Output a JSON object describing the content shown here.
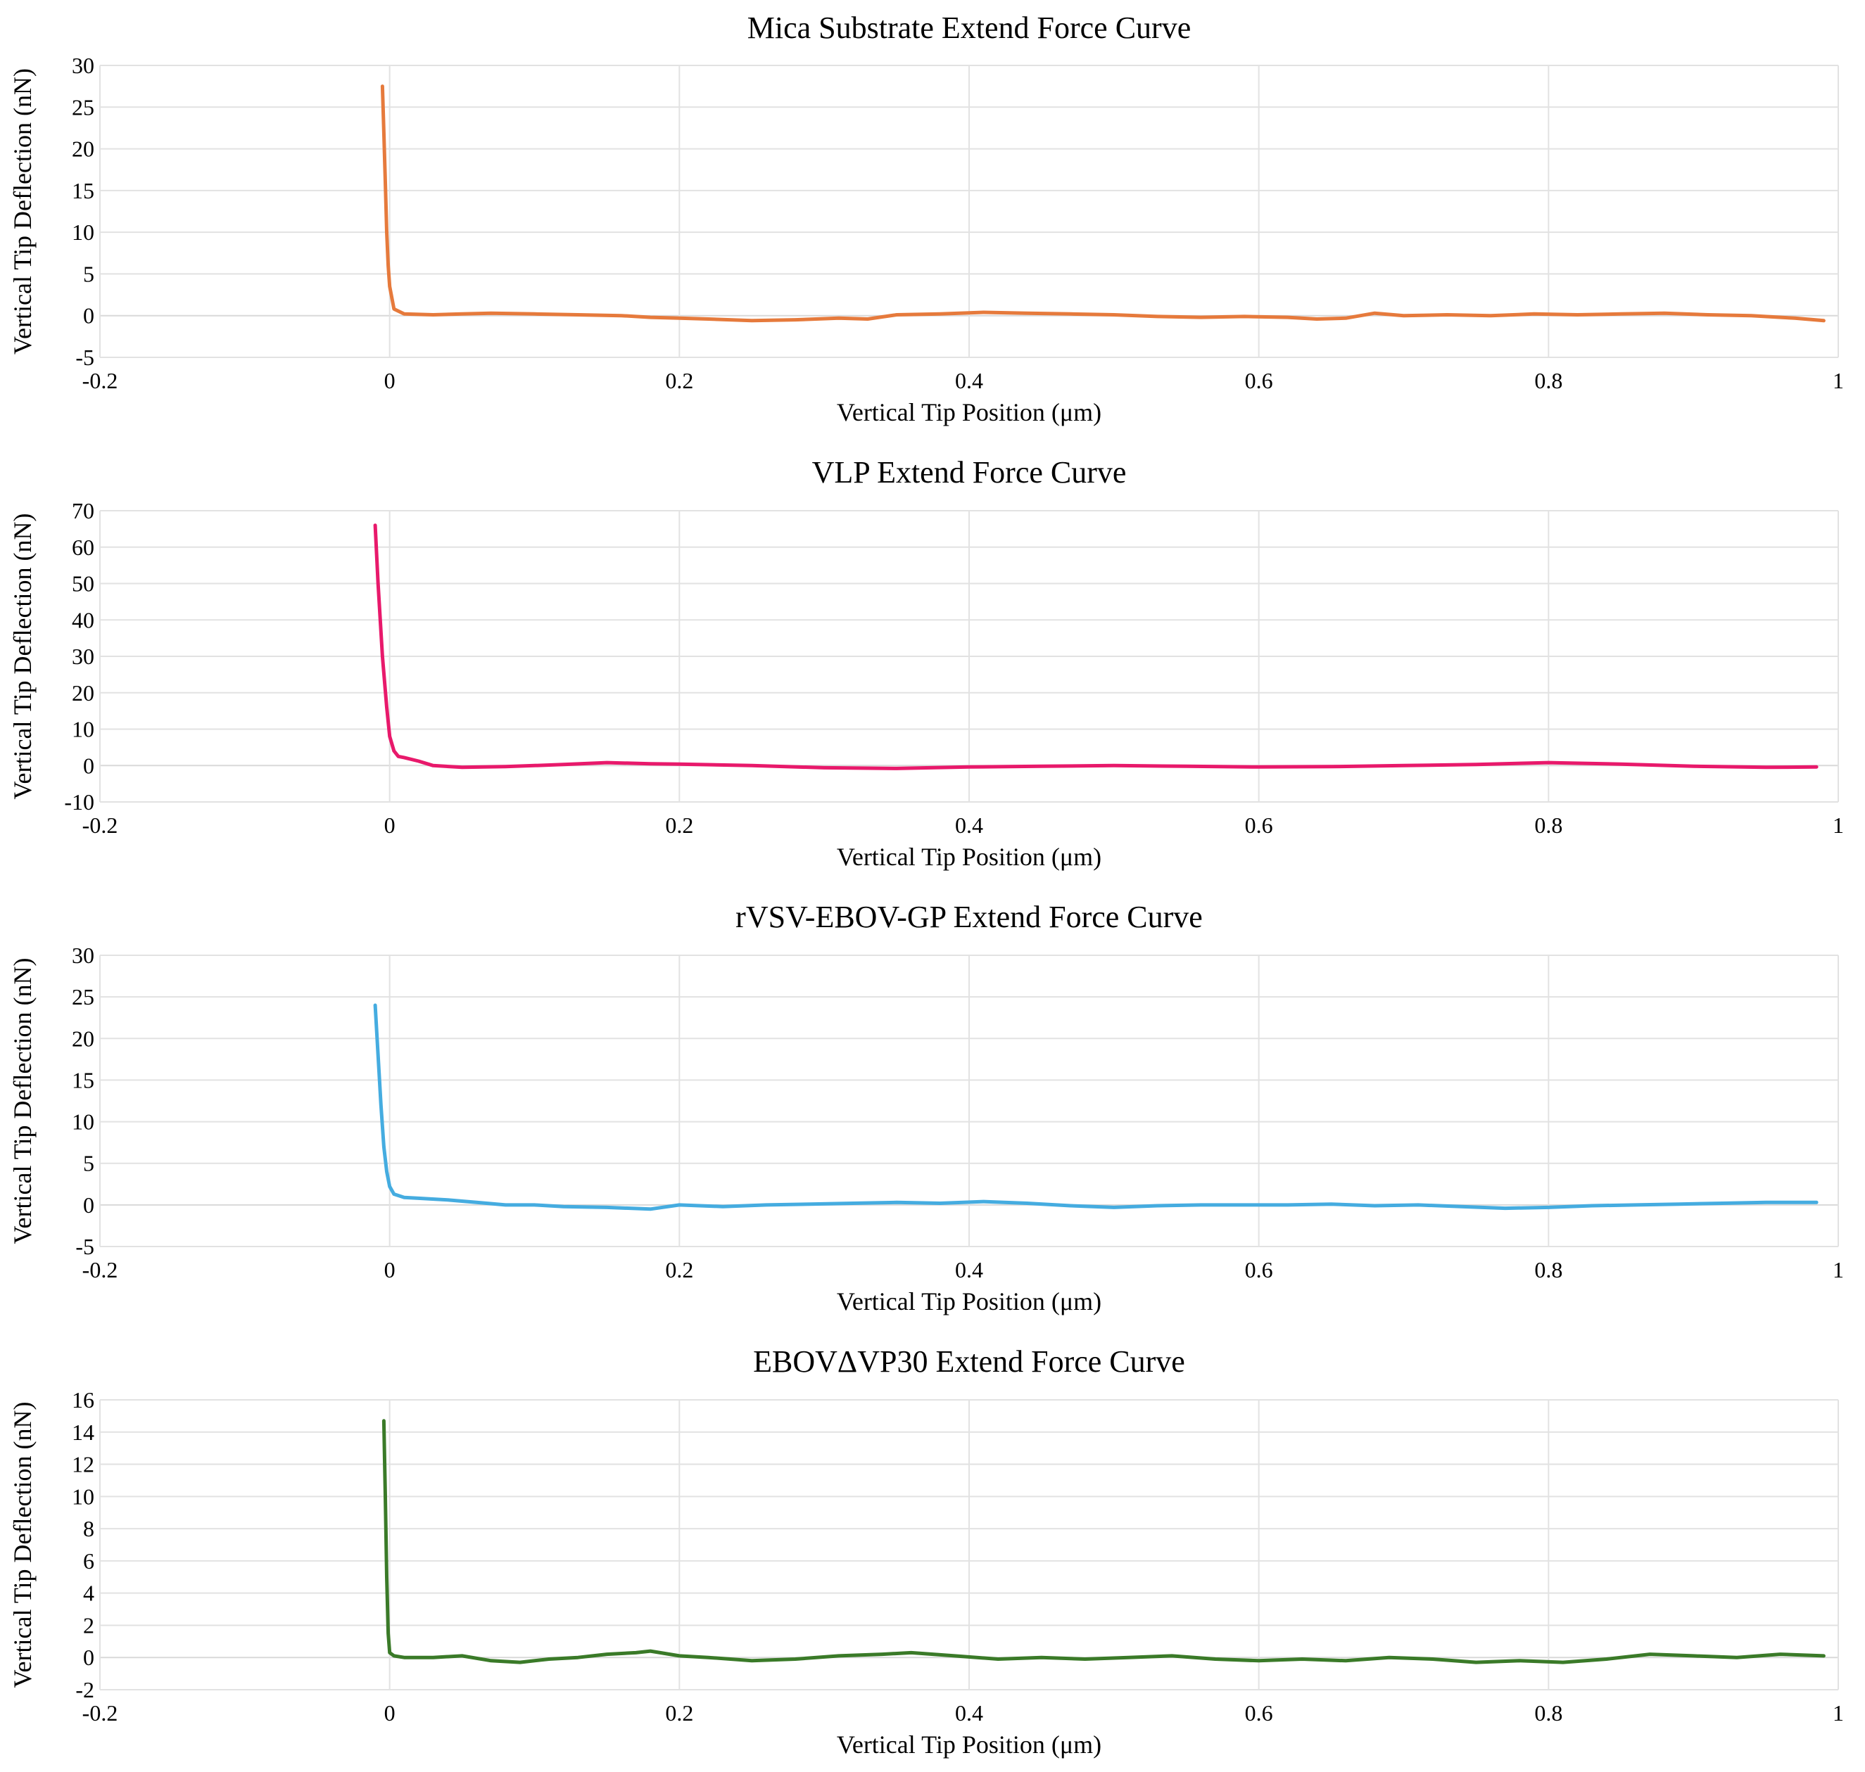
{
  "chart_data": [
    {
      "type": "line",
      "title": "Mica Substrate Extend Force Curve",
      "xlabel": "Vertical Tip Position (μm)",
      "ylabel": "Vertical Tip Deflection (nN)",
      "xlim": [
        -0.2,
        1
      ],
      "ylim": [
        -5,
        30
      ],
      "xticks": [
        -0.2,
        0,
        0.2,
        0.4,
        0.6,
        0.8,
        1
      ],
      "xtick_labels": [
        "-0.2",
        "0",
        "0.2",
        "0.4",
        "0.6",
        "0.8",
        "1"
      ],
      "yticks": [
        -5,
        0,
        5,
        10,
        15,
        20,
        25,
        30
      ],
      "ytick_labels": [
        "-5",
        "0",
        "5",
        "10",
        "15",
        "20",
        "25",
        "30"
      ],
      "grid": true,
      "color": "#e67a3c",
      "series": [
        {
          "x": [
            -0.005,
            -0.004,
            -0.003,
            -0.002,
            -0.001,
            0.0,
            0.003,
            0.01,
            0.03,
            0.05,
            0.07,
            0.1,
            0.13,
            0.16,
            0.18,
            0.2,
            0.22,
            0.25,
            0.28,
            0.31,
            0.33,
            0.35,
            0.38,
            0.41,
            0.44,
            0.47,
            0.5,
            0.53,
            0.56,
            0.59,
            0.62,
            0.64,
            0.66,
            0.68,
            0.7,
            0.73,
            0.76,
            0.79,
            0.82,
            0.85,
            0.88,
            0.91,
            0.94,
            0.97,
            0.99
          ],
          "y": [
            27.5,
            22,
            16,
            10,
            6,
            3.5,
            0.8,
            0.2,
            0.1,
            0.2,
            0.3,
            0.2,
            0.1,
            0.0,
            -0.2,
            -0.3,
            -0.4,
            -0.6,
            -0.5,
            -0.3,
            -0.4,
            0.1,
            0.2,
            0.4,
            0.3,
            0.2,
            0.1,
            -0.1,
            -0.2,
            -0.1,
            -0.2,
            -0.4,
            -0.3,
            0.3,
            0.0,
            0.1,
            0.0,
            0.2,
            0.1,
            0.2,
            0.3,
            0.1,
            0.0,
            -0.3,
            -0.6
          ]
        }
      ]
    },
    {
      "type": "line",
      "title": "VLP Extend Force Curve",
      "xlabel": "Vertical Tip Position (μm)",
      "ylabel": "Vertical Tip Deflection (nN)",
      "xlim": [
        -0.2,
        1
      ],
      "ylim": [
        -10,
        70
      ],
      "xticks": [
        -0.2,
        0,
        0.2,
        0.4,
        0.6,
        0.8,
        1
      ],
      "xtick_labels": [
        "-0.2",
        "0",
        "0.2",
        "0.4",
        "0.6",
        "0.8",
        "1"
      ],
      "yticks": [
        -10,
        0,
        10,
        20,
        30,
        40,
        50,
        60,
        70
      ],
      "ytick_labels": [
        "-10",
        "0",
        "10",
        "20",
        "30",
        "40",
        "50",
        "60",
        "70"
      ],
      "grid": true,
      "color": "#e8196b",
      "series": [
        {
          "x": [
            -0.01,
            -0.008,
            -0.005,
            -0.002,
            0.0,
            0.003,
            0.006,
            0.01,
            0.02,
            0.03,
            0.05,
            0.08,
            0.1,
            0.12,
            0.15,
            0.18,
            0.2,
            0.25,
            0.3,
            0.35,
            0.4,
            0.45,
            0.5,
            0.55,
            0.6,
            0.65,
            0.7,
            0.75,
            0.8,
            0.85,
            0.9,
            0.95,
            0.985
          ],
          "y": [
            66,
            50,
            30,
            16,
            8,
            4,
            2.5,
            2.2,
            1.2,
            0.0,
            -0.5,
            -0.3,
            0.0,
            0.3,
            0.8,
            0.5,
            0.4,
            0.0,
            -0.6,
            -0.8,
            -0.4,
            -0.2,
            0.0,
            -0.2,
            -0.4,
            -0.3,
            0.0,
            0.3,
            0.8,
            0.4,
            -0.2,
            -0.5,
            -0.4
          ]
        }
      ]
    },
    {
      "type": "line",
      "title": "rVSV-EBOV-GP Extend Force Curve",
      "xlabel": "Vertical Tip Position (μm)",
      "ylabel": "Vertical Tip Deflection (nN)",
      "xlim": [
        -0.2,
        1
      ],
      "ylim": [
        -5,
        30
      ],
      "xticks": [
        -0.2,
        0,
        0.2,
        0.4,
        0.6,
        0.8,
        1
      ],
      "xtick_labels": [
        "-0.2",
        "0",
        "0.2",
        "0.4",
        "0.6",
        "0.8",
        "1"
      ],
      "yticks": [
        -5,
        0,
        5,
        10,
        15,
        20,
        25,
        30
      ],
      "ytick_labels": [
        "-5",
        "0",
        "5",
        "10",
        "15",
        "20",
        "25",
        "30"
      ],
      "grid": true,
      "color": "#45ace0",
      "series": [
        {
          "x": [
            -0.01,
            -0.008,
            -0.006,
            -0.004,
            -0.002,
            0.0,
            0.003,
            0.01,
            0.02,
            0.04,
            0.06,
            0.08,
            0.1,
            0.12,
            0.15,
            0.18,
            0.2,
            0.23,
            0.26,
            0.29,
            0.32,
            0.35,
            0.38,
            0.41,
            0.44,
            0.47,
            0.5,
            0.53,
            0.56,
            0.59,
            0.62,
            0.65,
            0.68,
            0.71,
            0.74,
            0.77,
            0.8,
            0.83,
            0.86,
            0.89,
            0.92,
            0.95,
            0.985
          ],
          "y": [
            24,
            18,
            12,
            7,
            4,
            2.2,
            1.3,
            0.9,
            0.8,
            0.6,
            0.3,
            0.0,
            0.0,
            -0.2,
            -0.3,
            -0.5,
            0.0,
            -0.2,
            0.0,
            0.1,
            0.2,
            0.3,
            0.2,
            0.4,
            0.2,
            -0.1,
            -0.3,
            -0.1,
            0.0,
            0.0,
            0.0,
            0.1,
            -0.1,
            0.0,
            -0.2,
            -0.4,
            -0.3,
            -0.1,
            0.0,
            0.1,
            0.2,
            0.3,
            0.3
          ]
        }
      ]
    },
    {
      "type": "line",
      "title": "EBOVΔVP30 Extend Force Curve",
      "xlabel": "Vertical Tip Position (μm)",
      "ylabel": "Vertical Tip Deflection (nN)",
      "xlim": [
        -0.2,
        1
      ],
      "ylim": [
        -2,
        16
      ],
      "xticks": [
        -0.2,
        0,
        0.2,
        0.4,
        0.6,
        0.8,
        1
      ],
      "xtick_labels": [
        "-0.2",
        "0",
        "0.2",
        "0.4",
        "0.6",
        "0.8",
        "1"
      ],
      "yticks": [
        -2,
        0,
        2,
        4,
        6,
        8,
        10,
        12,
        14,
        16
      ],
      "ytick_labels": [
        "-2",
        "0",
        "2",
        "4",
        "6",
        "8",
        "10",
        "12",
        "14",
        "16"
      ],
      "grid": true,
      "color": "#3a7a28",
      "series": [
        {
          "x": [
            -0.004,
            -0.003,
            -0.002,
            -0.001,
            0.0,
            0.003,
            0.01,
            0.03,
            0.05,
            0.07,
            0.09,
            0.11,
            0.13,
            0.15,
            0.17,
            0.18,
            0.2,
            0.22,
            0.25,
            0.28,
            0.31,
            0.34,
            0.36,
            0.39,
            0.42,
            0.45,
            0.48,
            0.51,
            0.54,
            0.57,
            0.6,
            0.63,
            0.66,
            0.69,
            0.72,
            0.75,
            0.78,
            0.81,
            0.84,
            0.87,
            0.9,
            0.93,
            0.96,
            0.99
          ],
          "y": [
            14.7,
            10,
            5,
            1.5,
            0.3,
            0.1,
            0.0,
            0.0,
            0.1,
            -0.2,
            -0.3,
            -0.1,
            0.0,
            0.2,
            0.3,
            0.4,
            0.1,
            0.0,
            -0.2,
            -0.1,
            0.1,
            0.2,
            0.3,
            0.1,
            -0.1,
            0.0,
            -0.1,
            0.0,
            0.1,
            -0.1,
            -0.2,
            -0.1,
            -0.2,
            0.0,
            -0.1,
            -0.3,
            -0.2,
            -0.3,
            -0.1,
            0.2,
            0.1,
            0.0,
            0.2,
            0.1
          ]
        }
      ]
    }
  ]
}
